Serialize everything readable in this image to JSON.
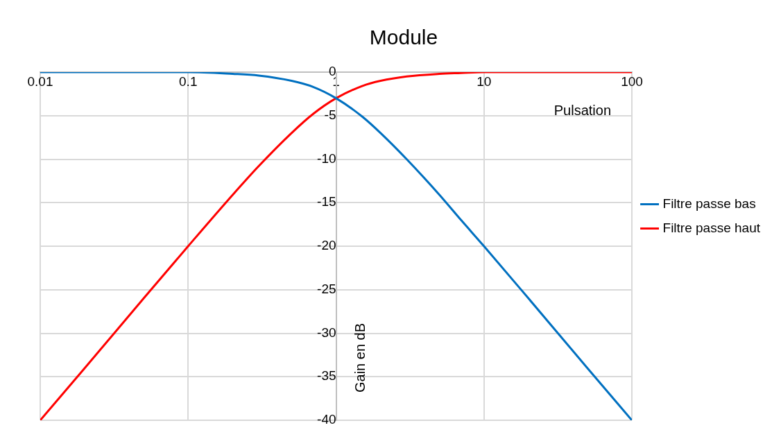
{
  "chart_data": {
    "type": "line",
    "title": "Module",
    "xlabel": "Pulsation",
    "ylabel": "Gain en dB",
    "x": [
      0.01,
      0.02,
      0.05,
      0.1,
      0.2,
      0.3,
      0.5,
      0.7,
      1,
      1.5,
      2,
      3,
      5,
      7,
      10,
      20,
      50,
      100
    ],
    "series": [
      {
        "name": "Filtre passe bas",
        "color": "#0070c0",
        "values": [
          0,
          0,
          0,
          0,
          -0.2,
          -0.4,
          -1,
          -1.7,
          -3,
          -5.1,
          -7,
          -10,
          -14.1,
          -17,
          -20,
          -26,
          -34,
          -40
        ]
      },
      {
        "name": "Filtre passe haut",
        "color": "#ff0000",
        "values": [
          -40,
          -34,
          -26,
          -20,
          -14.1,
          -10.8,
          -7,
          -4.8,
          -3,
          -1.6,
          -1,
          -0.5,
          -0.2,
          -0.1,
          0,
          0,
          0,
          0
        ]
      }
    ],
    "log": "x",
    "xlim": [
      0.01,
      100
    ],
    "xticks": [
      0.01,
      0.1,
      1,
      10,
      100
    ],
    "ylim": [
      -40,
      0
    ],
    "yticks": [
      0,
      -5,
      -10,
      -15,
      -20,
      -25,
      -30,
      -35,
      -40
    ],
    "grid": true,
    "legend": "right",
    "marker": "none",
    "line_style": "solid"
  }
}
